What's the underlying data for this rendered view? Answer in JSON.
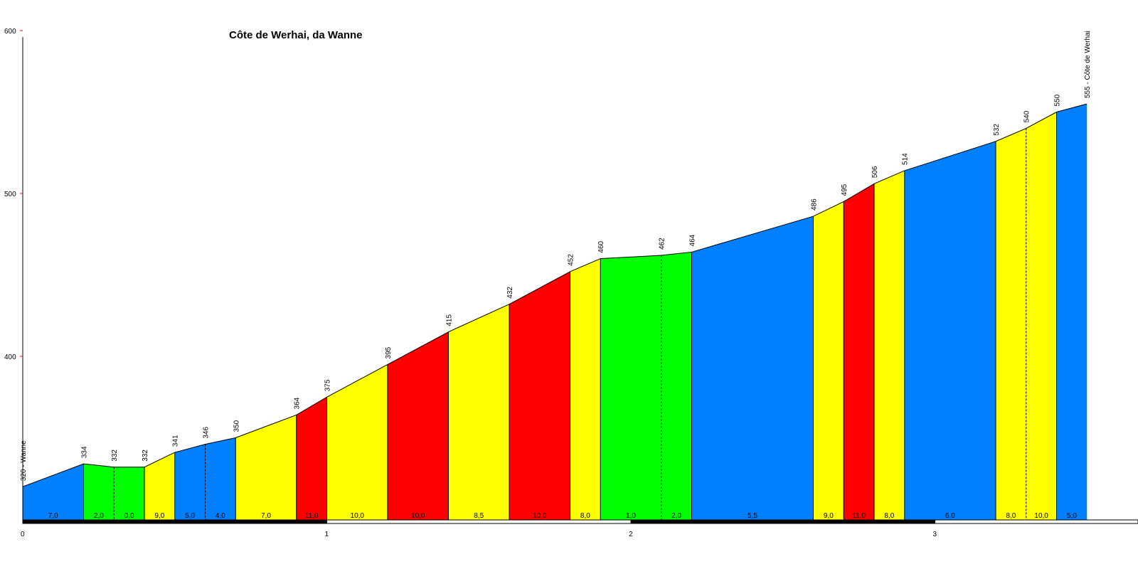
{
  "chart_data": {
    "type": "area",
    "title": "Côte de Werhai, da Wanne",
    "xlabel": "",
    "ylabel": "",
    "xlim": [
      0,
      3.67
    ],
    "ylim": [
      300,
      600
    ],
    "x_ticks": [
      "0",
      "1",
      "2",
      "3"
    ],
    "y_ticks": [
      "400",
      "500",
      "600"
    ],
    "points": [
      {
        "x": 0.0,
        "y": 320,
        "label": "320 - Wanne"
      },
      {
        "x": 0.2,
        "y": 334,
        "label": "334"
      },
      {
        "x": 0.3,
        "y": 332,
        "label": "332"
      },
      {
        "x": 0.4,
        "y": 332,
        "label": "332"
      },
      {
        "x": 0.5,
        "y": 341,
        "label": "341"
      },
      {
        "x": 0.6,
        "y": 346,
        "label": "346"
      },
      {
        "x": 0.7,
        "y": 350,
        "label": "350"
      },
      {
        "x": 0.9,
        "y": 364,
        "label": "364"
      },
      {
        "x": 1.0,
        "y": 375,
        "label": "375"
      },
      {
        "x": 1.2,
        "y": 395,
        "label": "395"
      },
      {
        "x": 1.4,
        "y": 415,
        "label": "415"
      },
      {
        "x": 1.6,
        "y": 432,
        "label": "432"
      },
      {
        "x": 1.8,
        "y": 452,
        "label": "452"
      },
      {
        "x": 1.9,
        "y": 460,
        "label": "460"
      },
      {
        "x": 2.1,
        "y": 462,
        "label": "462"
      },
      {
        "x": 2.2,
        "y": 464,
        "label": "464"
      },
      {
        "x": 2.6,
        "y": 486,
        "label": "486"
      },
      {
        "x": 2.7,
        "y": 495,
        "label": "495"
      },
      {
        "x": 2.8,
        "y": 506,
        "label": "506"
      },
      {
        "x": 2.9,
        "y": 514,
        "label": "514"
      },
      {
        "x": 3.2,
        "y": 532,
        "label": "532"
      },
      {
        "x": 3.3,
        "y": 540,
        "label": "540"
      },
      {
        "x": 3.4,
        "y": 550,
        "label": "550"
      },
      {
        "x": 3.5,
        "y": 555,
        "label": "555 - Côte de Werhai"
      }
    ],
    "segments": [
      {
        "grade": "7,0",
        "color": "#0080ff",
        "dashed_end": false
      },
      {
        "grade": "2,0",
        "color": "#00ff00",
        "dashed_end": true
      },
      {
        "grade": "0,0",
        "color": "#00ff00",
        "dashed_end": false
      },
      {
        "grade": "9,0",
        "color": "#ffff00",
        "dashed_end": false
      },
      {
        "grade": "5,0",
        "color": "#0080ff",
        "dashed_end": true
      },
      {
        "grade": "4,0",
        "color": "#0080ff",
        "dashed_end": false
      },
      {
        "grade": "7,0",
        "color": "#ffff00",
        "dashed_end": false
      },
      {
        "grade": "11,0",
        "color": "#ff0000",
        "dashed_end": false
      },
      {
        "grade": "10,0",
        "color": "#ffff00",
        "dashed_end": false
      },
      {
        "grade": "10,0",
        "color": "#ff0000",
        "dashed_end": false
      },
      {
        "grade": "8,5",
        "color": "#ffff00",
        "dashed_end": false
      },
      {
        "grade": "10,0",
        "color": "#ff0000",
        "dashed_end": false
      },
      {
        "grade": "8,0",
        "color": "#ffff00",
        "dashed_end": false
      },
      {
        "grade": "1,0",
        "color": "#00ff00",
        "dashed_end": true
      },
      {
        "grade": "2,0",
        "color": "#00ff00",
        "dashed_end": false
      },
      {
        "grade": "5,5",
        "color": "#0080ff",
        "dashed_end": false
      },
      {
        "grade": "9,0",
        "color": "#ffff00",
        "dashed_end": false
      },
      {
        "grade": "11,0",
        "color": "#ff0000",
        "dashed_end": false
      },
      {
        "grade": "8,0",
        "color": "#ffff00",
        "dashed_end": false
      },
      {
        "grade": "6,0",
        "color": "#0080ff",
        "dashed_end": false
      },
      {
        "grade": "8,0",
        "color": "#ffff00",
        "dashed_end": true
      },
      {
        "grade": "10,0",
        "color": "#ffff00",
        "dashed_end": false
      },
      {
        "grade": "5,0",
        "color": "#0080ff",
        "dashed_end": false
      }
    ],
    "colors": {
      "axis": "#000000",
      "axis_tick": "#ff0000",
      "scale_bar_dark": "#000000",
      "scale_bar_light": "#ffffff"
    }
  }
}
